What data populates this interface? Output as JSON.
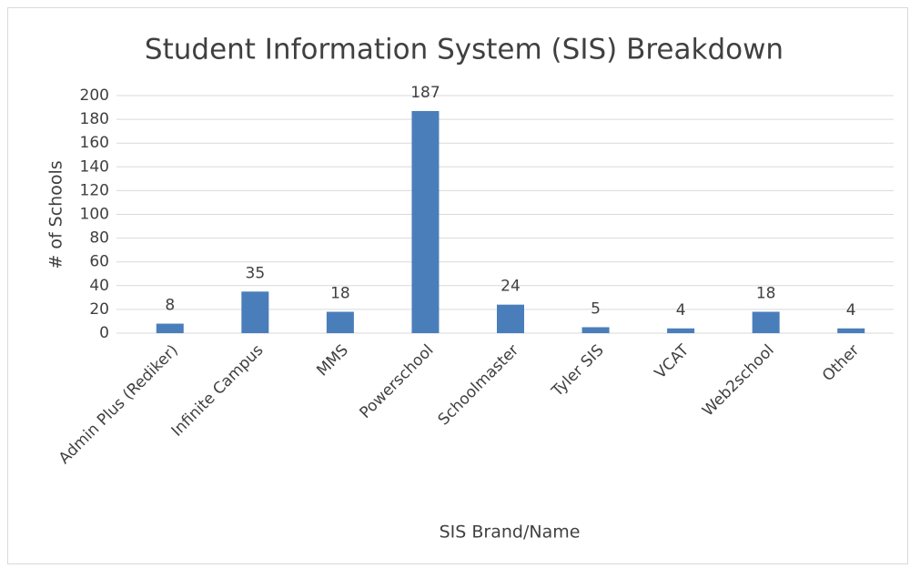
{
  "chart_data": {
    "type": "bar",
    "title": "Student Information System (SIS) Breakdown",
    "x_label": "SIS Brand/Name",
    "y_label": "# of Schools",
    "categories": [
      "Admin Plus (Rediker)",
      "Infinite Campus",
      "MMS",
      "Powerschool",
      "Schoolmaster",
      "Tyler SIS",
      "VCAT",
      "Web2school",
      "Other"
    ],
    "values": [
      8,
      35,
      18,
      187,
      24,
      5,
      4,
      18,
      4
    ],
    "color": "#4a7ebb",
    "ylim": [
      0,
      200
    ],
    "yticks": [
      0,
      20,
      40,
      60,
      80,
      100,
      120,
      140,
      160,
      180,
      200
    ],
    "grid": true
  }
}
